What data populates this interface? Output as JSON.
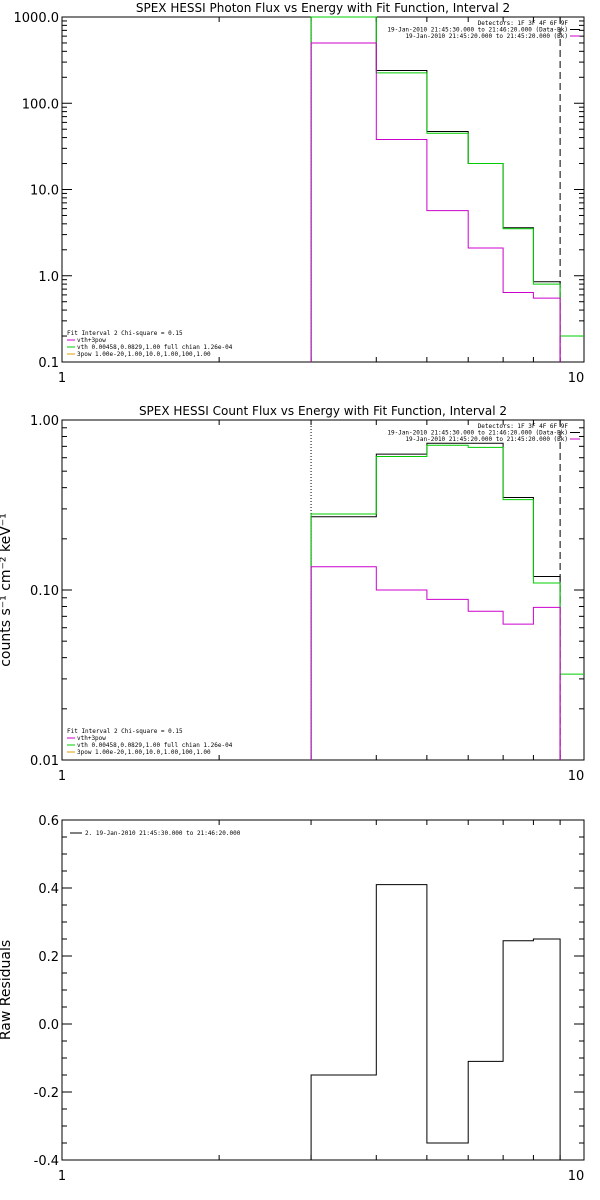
{
  "chart_data": [
    {
      "type": "line",
      "title": "SPEX HESSI Photon Flux vs Energy with Fit Function, Interval 2",
      "ylabel": "",
      "xscale": "log",
      "yscale": "log",
      "xlim": [
        1,
        10
      ],
      "ylim": [
        0.1,
        1000
      ],
      "x_ticks": [
        "1",
        "10"
      ],
      "y_ticks": [
        {
          "v": 0.1,
          "label": "0.1"
        },
        {
          "v": 1,
          "label": "1.0"
        },
        {
          "v": 10,
          "label": "10.0"
        },
        {
          "v": 100,
          "label": "100.0"
        },
        {
          "v": 1000,
          "label": "1000.0"
        }
      ],
      "legend_top": [
        {
          "text": "Detectors: 1F 3F 4F 6F 9F",
          "color": null
        },
        {
          "text": "19-Jan-2010 21:45:30.000 to 21:46:20.000 (Data-Bk)",
          "color": "#000000"
        },
        {
          "text": "19-Jan-2010 21:45:20.000 to 21:45:20.000 (Bk)",
          "color": "#cc00cc"
        }
      ],
      "legend_bottom": [
        {
          "text": "Fit Interval 2   Chi-square = 0.15",
          "color": null
        },
        {
          "text": "vth+3pow",
          "color": "#cc00cc"
        },
        {
          "text": "vth 0.00458,0.0829,1.00  full chian 1.26e-04",
          "color": "#00cc00"
        },
        {
          "text": "3pow 1.00e-20,1.00,10.0,1.00,100,1.00",
          "color": "#e0a000"
        }
      ],
      "vlines": [
        {
          "x": 3.0,
          "style": "dotted",
          "color": "#000000"
        },
        {
          "x": 9.0,
          "style": "dashed",
          "color": "#000000"
        }
      ],
      "series": [
        {
          "color": "#000000",
          "edges": [
            3.0,
            3.5,
            4.0,
            5.0,
            6.0,
            7.0,
            8.0,
            9.0
          ],
          "values": [
            1000,
            1000,
            240,
            47,
            20,
            3.6,
            0.85
          ]
        },
        {
          "color": "#00cc00",
          "edges": [
            3.0,
            3.5,
            4.0,
            5.0,
            6.0,
            7.0,
            8.0,
            9.0,
            10.0
          ],
          "values": [
            1000,
            1000,
            225,
            45,
            20,
            3.5,
            0.8,
            0.2
          ]
        },
        {
          "color": "#cc00cc",
          "edges": [
            3.0,
            3.5,
            4.0,
            5.0,
            6.0,
            7.0,
            8.0,
            9.0
          ],
          "values": [
            500,
            500,
            38,
            5.7,
            2.1,
            0.64,
            0.55
          ]
        }
      ]
    },
    {
      "type": "line",
      "title": "SPEX HESSI Count Flux vs Energy with Fit Function, Interval 2",
      "ylabel": "counts s⁻¹ cm⁻² keV⁻¹",
      "xscale": "log",
      "yscale": "log",
      "xlim": [
        1,
        10
      ],
      "ylim": [
        0.01,
        1.0
      ],
      "x_ticks": [
        "1",
        "10"
      ],
      "y_ticks": [
        {
          "v": 0.01,
          "label": "0.01"
        },
        {
          "v": 0.1,
          "label": "0.10"
        },
        {
          "v": 1.0,
          "label": "1.00"
        }
      ],
      "legend_top": [
        {
          "text": "Detectors: 1F 3F 4F 6F 9F",
          "color": null
        },
        {
          "text": "19-Jan-2010 21:45:30.000 to 21:46:20.000 (Data-Bk)",
          "color": "#000000"
        },
        {
          "text": "19-Jan-2010 21:45:20.000 to 21:45:20.000 (Bk)",
          "color": "#cc00cc"
        }
      ],
      "legend_bottom": [
        {
          "text": "Fit Interval 2   Chi-square = 0.15",
          "color": null
        },
        {
          "text": "vth+3pow",
          "color": "#cc00cc"
        },
        {
          "text": "vth 0.00458,0.0829,1.00  full chian 1.26e-04",
          "color": "#00cc00"
        },
        {
          "text": "3pow 1.00e-20,1.00,10.0,1.00,100,1.00",
          "color": "#e0a000"
        }
      ],
      "vlines": [
        {
          "x": 3.0,
          "style": "dotted",
          "color": "#000000"
        },
        {
          "x": 9.0,
          "style": "dashed",
          "color": "#000000"
        }
      ],
      "series": [
        {
          "color": "#000000",
          "edges": [
            3.0,
            3.5,
            4.0,
            5.0,
            6.0,
            7.0,
            8.0,
            9.0
          ],
          "values": [
            0.27,
            0.27,
            0.63,
            0.73,
            0.73,
            0.35,
            0.12
          ]
        },
        {
          "color": "#00cc00",
          "edges": [
            3.0,
            3.5,
            4.0,
            5.0,
            6.0,
            7.0,
            8.0,
            9.0,
            10.0
          ],
          "values": [
            0.28,
            0.28,
            0.61,
            0.71,
            0.69,
            0.34,
            0.11,
            0.032
          ]
        },
        {
          "color": "#cc00cc",
          "edges": [
            3.0,
            3.5,
            4.0,
            5.0,
            6.0,
            7.0,
            8.0,
            9.0
          ],
          "values": [
            0.137,
            0.137,
            0.1,
            0.088,
            0.075,
            0.063,
            0.079
          ]
        }
      ]
    },
    {
      "type": "line",
      "title": "",
      "ylabel": "Raw Residuals",
      "xscale": "log",
      "yscale": "linear",
      "xlim": [
        1,
        10
      ],
      "ylim": [
        -0.4,
        0.6
      ],
      "x_ticks": [
        "1",
        "10"
      ],
      "y_ticks": [
        {
          "v": -0.4,
          "label": "-0.4"
        },
        {
          "v": -0.2,
          "label": "-0.2"
        },
        {
          "v": 0.0,
          "label": "0.0"
        },
        {
          "v": 0.2,
          "label": "0.2"
        },
        {
          "v": 0.4,
          "label": "0.4"
        },
        {
          "v": 0.6,
          "label": "0.6"
        }
      ],
      "legend_top": [
        {
          "text": "2. 19-Jan-2010 21:45:30.000 to 21:46:20.000",
          "color": "#000000"
        }
      ],
      "legend_bottom": [],
      "vlines": [],
      "series": [
        {
          "color": "#000000",
          "edges": [
            3.0,
            3.5,
            4.0,
            5.0,
            6.0,
            7.0,
            8.0,
            9.0
          ],
          "values": [
            -0.15,
            -0.15,
            0.41,
            -0.35,
            -0.11,
            0.245,
            0.25
          ]
        }
      ]
    }
  ]
}
